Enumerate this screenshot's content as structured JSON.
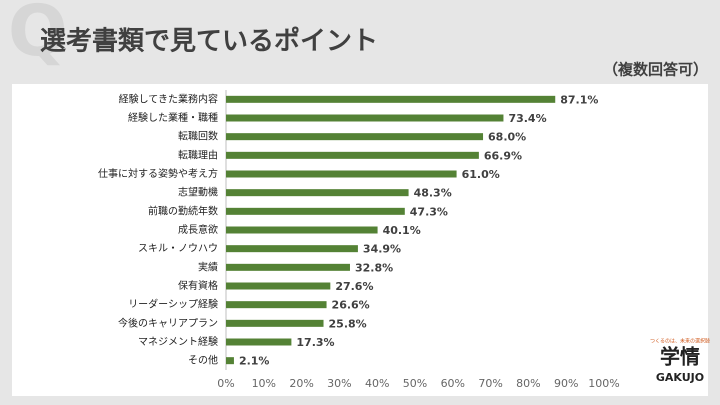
{
  "chart_data": {
    "type": "bar",
    "orientation": "horizontal",
    "title": "選考書類で見ているポイント",
    "subtitle": "（複数回答可）",
    "categories": [
      "経験してきた業務内容",
      "経験した業種・職種",
      "転職回数",
      "転職理由",
      "仕事に対する姿勢や考え方",
      "志望動機",
      "前職の勤続年数",
      "成長意欲",
      "スキル・ノウハウ",
      "実績",
      "保有資格",
      "リーダーシップ経験",
      "今後のキャリアプラン",
      "マネジメント経験",
      "その他"
    ],
    "values": [
      87.1,
      73.4,
      68.0,
      66.9,
      61.0,
      48.3,
      47.3,
      40.1,
      34.9,
      32.8,
      27.6,
      26.6,
      25.8,
      17.3,
      2.1
    ],
    "value_labels": [
      "87.1%",
      "73.4%",
      "68.0%",
      "66.9%",
      "61.0%",
      "48.3%",
      "47.3%",
      "40.1%",
      "34.9%",
      "32.8%",
      "27.6%",
      "26.6%",
      "25.8%",
      "17.3%",
      "2.1%"
    ],
    "color": "#548235",
    "xlim": [
      0,
      100
    ],
    "xticks": [
      {
        "value": 0,
        "label": "0%"
      },
      {
        "value": 10,
        "label": "10%"
      },
      {
        "value": 20,
        "label": "20%"
      },
      {
        "value": 30,
        "label": "30%"
      },
      {
        "value": 40,
        "label": "40%"
      },
      {
        "value": 50,
        "label": "50%"
      },
      {
        "value": 60,
        "label": "60%"
      },
      {
        "value": 70,
        "label": "70%"
      },
      {
        "value": 80,
        "label": "80%"
      },
      {
        "value": 90,
        "label": "90%"
      },
      {
        "value": 100,
        "label": "100%"
      }
    ],
    "grid": false
  },
  "logo": {
    "tagline": "つくるのは、未来の選択肢",
    "name": "学情",
    "romaji": "GAKUJO"
  }
}
